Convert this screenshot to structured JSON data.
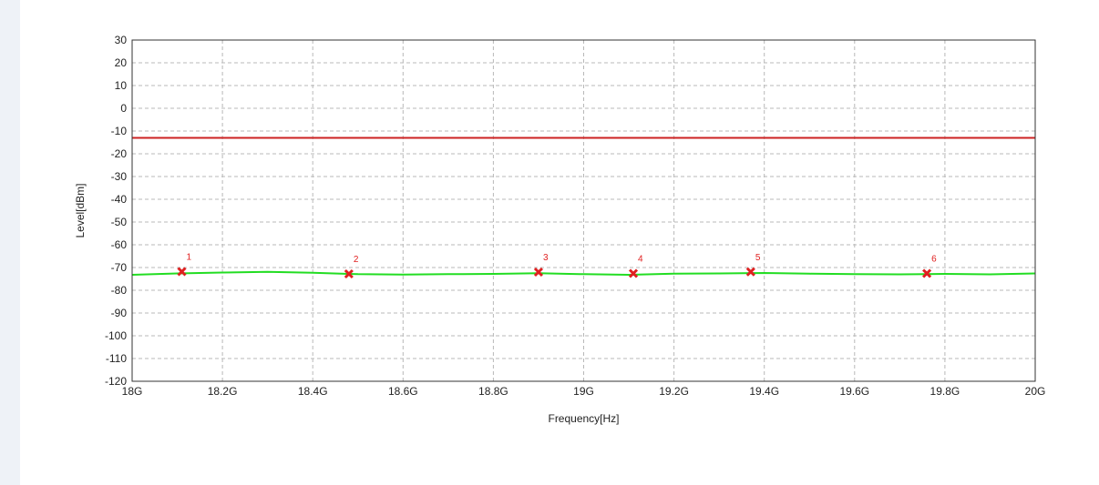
{
  "chart_data": {
    "type": "line",
    "xlabel": "Frequency[Hz]",
    "ylabel": "Level[dBm]",
    "xlim": [
      18,
      20
    ],
    "ylim": [
      -120,
      30
    ],
    "grid": true,
    "x_ticks": [
      {
        "value": 18.0,
        "label": "18G"
      },
      {
        "value": 18.2,
        "label": "18.2G"
      },
      {
        "value": 18.4,
        "label": "18.4G"
      },
      {
        "value": 18.6,
        "label": "18.6G"
      },
      {
        "value": 18.8,
        "label": "18.8G"
      },
      {
        "value": 19.0,
        "label": "19G"
      },
      {
        "value": 19.2,
        "label": "19.2G"
      },
      {
        "value": 19.4,
        "label": "19.4G"
      },
      {
        "value": 19.6,
        "label": "19.6G"
      },
      {
        "value": 19.8,
        "label": "19.8G"
      },
      {
        "value": 20.0,
        "label": "20G"
      }
    ],
    "y_ticks": [
      30,
      20,
      10,
      0,
      -10,
      -20,
      -30,
      -40,
      -50,
      -60,
      -70,
      -80,
      -90,
      -100,
      -110,
      -120
    ],
    "limit_line": {
      "y": -13,
      "color": "#cc2222"
    },
    "series": [
      {
        "color": "#22dd22",
        "x": [
          18.0,
          18.1,
          18.2,
          18.3,
          18.4,
          18.5,
          18.6,
          18.7,
          18.8,
          18.9,
          19.0,
          19.1,
          19.2,
          19.3,
          19.4,
          19.5,
          19.6,
          19.7,
          19.8,
          19.9,
          20.0
        ],
        "y": [
          -73.2,
          -72.6,
          -72.2,
          -71.9,
          -72.3,
          -72.9,
          -73.1,
          -72.9,
          -72.8,
          -72.5,
          -72.9,
          -73.2,
          -72.7,
          -72.6,
          -72.4,
          -72.7,
          -72.9,
          -73.0,
          -72.8,
          -73.0,
          -72.6
        ]
      }
    ],
    "markers": [
      {
        "label": "1",
        "x": 18.11,
        "y": -71.8
      },
      {
        "label": "2",
        "x": 18.48,
        "y": -72.8
      },
      {
        "label": "3",
        "x": 18.9,
        "y": -72.0
      },
      {
        "label": "4",
        "x": 19.11,
        "y": -72.6
      },
      {
        "label": "5",
        "x": 19.37,
        "y": -71.9
      },
      {
        "label": "6",
        "x": 19.76,
        "y": -72.6
      }
    ],
    "marker_color": "#e02020"
  }
}
